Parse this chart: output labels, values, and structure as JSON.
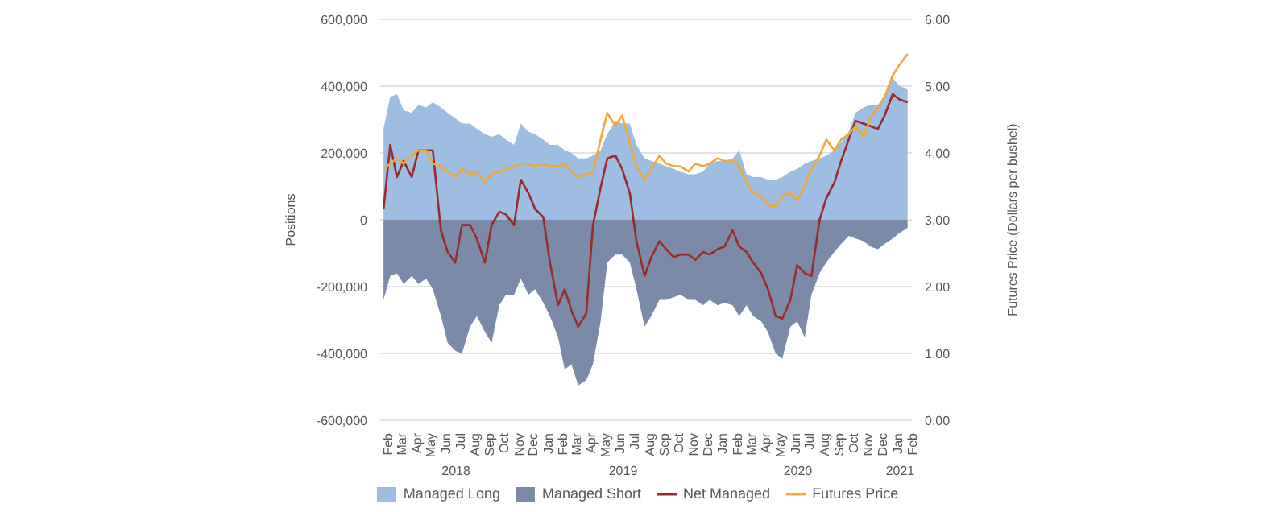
{
  "chart_data": {
    "type": "area",
    "xlabel": null,
    "ylabel": "Positions",
    "y2label": "Futures Price (Dollars per bushel)",
    "x": [
      "2018-02-01",
      "2018-02-15",
      "2018-03-01",
      "2018-03-15",
      "2018-04-01",
      "2018-04-15",
      "2018-05-01",
      "2018-05-15",
      "2018-06-01",
      "2018-06-15",
      "2018-07-01",
      "2018-07-15",
      "2018-08-01",
      "2018-08-15",
      "2018-09-01",
      "2018-09-15",
      "2018-10-01",
      "2018-10-15",
      "2018-11-01",
      "2018-11-15",
      "2018-12-01",
      "2018-12-15",
      "2019-01-01",
      "2019-01-15",
      "2019-02-01",
      "2019-02-15",
      "2019-03-01",
      "2019-03-15",
      "2019-04-01",
      "2019-04-15",
      "2019-05-01",
      "2019-05-15",
      "2019-06-01",
      "2019-06-15",
      "2019-07-01",
      "2019-07-15",
      "2019-08-01",
      "2019-08-15",
      "2019-09-01",
      "2019-09-15",
      "2019-10-01",
      "2019-10-15",
      "2019-11-01",
      "2019-11-15",
      "2019-12-01",
      "2019-12-15",
      "2020-01-01",
      "2020-01-15",
      "2020-02-01",
      "2020-02-15",
      "2020-03-01",
      "2020-03-15",
      "2020-04-01",
      "2020-04-15",
      "2020-05-01",
      "2020-05-15",
      "2020-06-01",
      "2020-06-15",
      "2020-07-01",
      "2020-07-15",
      "2020-08-01",
      "2020-08-15",
      "2020-09-01",
      "2020-09-15",
      "2020-10-01",
      "2020-10-15",
      "2020-11-01",
      "2020-11-15",
      "2020-12-01",
      "2020-12-15",
      "2021-01-01",
      "2021-01-15",
      "2021-02-01"
    ],
    "series": [
      {
        "name": "Managed Long",
        "color": "#9dbde3",
        "values": [
          272000,
          368000,
          376000,
          328000,
          320000,
          344000,
          336000,
          352000,
          336000,
          320000,
          304000,
          288000,
          288000,
          272000,
          256000,
          248000,
          256000,
          240000,
          224000,
          288000,
          264000,
          256000,
          240000,
          224000,
          224000,
          208000,
          200000,
          184000,
          184000,
          192000,
          208000,
          256000,
          296000,
          288000,
          288000,
          224000,
          184000,
          176000,
          168000,
          160000,
          152000,
          144000,
          136000,
          136000,
          144000,
          168000,
          176000,
          176000,
          184000,
          208000,
          136000,
          128000,
          128000,
          120000,
          120000,
          128000,
          144000,
          152000,
          168000,
          176000,
          184000,
          192000,
          208000,
          232000,
          264000,
          320000,
          336000,
          344000,
          344000,
          368000,
          424000,
          400000,
          392000
        ]
      },
      {
        "name": "Managed Short",
        "color": "#7a8aa8",
        "values": [
          -240000,
          -168000,
          -160000,
          -192000,
          -168000,
          -192000,
          -176000,
          -208000,
          -288000,
          -368000,
          -392000,
          -400000,
          -320000,
          -288000,
          -336000,
          -368000,
          -256000,
          -224000,
          -224000,
          -176000,
          -224000,
          -208000,
          -248000,
          -288000,
          -352000,
          -448000,
          -432000,
          -496000,
          -480000,
          -432000,
          -304000,
          -128000,
          -104000,
          -104000,
          -128000,
          -208000,
          -320000,
          -288000,
          -240000,
          -240000,
          -232000,
          -224000,
          -240000,
          -240000,
          -256000,
          -240000,
          -256000,
          -248000,
          -256000,
          -288000,
          -256000,
          -288000,
          -304000,
          -336000,
          -400000,
          -416000,
          -320000,
          -304000,
          -352000,
          -224000,
          -160000,
          -128000,
          -96000,
          -72000,
          -48000,
          -56000,
          -64000,
          -80000,
          -88000,
          -72000,
          -56000,
          -40000,
          -24000
        ]
      },
      {
        "name": "Net Managed",
        "type": "line",
        "color": "#9b2a2a",
        "values": [
          32000,
          224000,
          128000,
          176000,
          128000,
          208000,
          208000,
          208000,
          -32000,
          -96000,
          -128000,
          -16000,
          -16000,
          -56000,
          -128000,
          -16000,
          24000,
          16000,
          -16000,
          120000,
          80000,
          32000,
          8000,
          -128000,
          -256000,
          -208000,
          -272000,
          -320000,
          -280000,
          -16000,
          96000,
          184000,
          192000,
          152000,
          80000,
          -64000,
          -168000,
          -112000,
          -64000,
          -88000,
          -112000,
          -104000,
          -104000,
          -120000,
          -96000,
          -104000,
          -88000,
          -80000,
          -32000,
          -80000,
          -96000,
          -128000,
          -160000,
          -208000,
          -288000,
          -296000,
          -240000,
          -136000,
          -160000,
          -168000,
          0,
          64000,
          112000,
          176000,
          240000,
          296000,
          288000,
          280000,
          272000,
          312000,
          376000,
          360000,
          352000
        ]
      },
      {
        "name": "Futures Price",
        "type": "line",
        "axis": "y2",
        "color": "#f0a838",
        "values": [
          3.76,
          3.84,
          3.92,
          3.84,
          3.96,
          4.04,
          4.04,
          3.84,
          3.8,
          3.72,
          3.64,
          3.76,
          3.68,
          3.72,
          3.56,
          3.68,
          3.72,
          3.76,
          3.8,
          3.84,
          3.84,
          3.8,
          3.84,
          3.8,
          3.8,
          3.84,
          3.72,
          3.64,
          3.68,
          3.72,
          4.2,
          4.6,
          4.4,
          4.56,
          4.16,
          3.8,
          3.6,
          3.76,
          3.96,
          3.84,
          3.8,
          3.8,
          3.72,
          3.84,
          3.8,
          3.84,
          3.92,
          3.88,
          3.88,
          3.8,
          3.56,
          3.4,
          3.36,
          3.22,
          3.2,
          3.36,
          3.4,
          3.28,
          3.52,
          3.76,
          3.96,
          4.2,
          4.04,
          4.2,
          4.28,
          4.4,
          4.24,
          4.52,
          4.68,
          4.84,
          5.16,
          5.32,
          5.48
        ]
      }
    ],
    "xlim": [
      "2018-01-25",
      "2021-02-10"
    ],
    "xticks": [
      {
        "value": "2018-02-01",
        "label": "Feb"
      },
      {
        "value": "2018-03-01",
        "label": "Mar"
      },
      {
        "value": "2018-04-01",
        "label": "Apr"
      },
      {
        "value": "2018-05-01",
        "label": "May"
      },
      {
        "value": "2018-06-01",
        "label": "Jun"
      },
      {
        "value": "2018-07-01",
        "label": "Jul"
      },
      {
        "value": "2018-08-01",
        "label": "Aug"
      },
      {
        "value": "2018-09-01",
        "label": "Sep"
      },
      {
        "value": "2018-10-01",
        "label": "Oct"
      },
      {
        "value": "2018-11-01",
        "label": "Nov"
      },
      {
        "value": "2018-12-01",
        "label": "Dec"
      },
      {
        "value": "2019-01-01",
        "label": "Jan"
      },
      {
        "value": "2019-02-01",
        "label": "Feb"
      },
      {
        "value": "2019-03-01",
        "label": "Mar"
      },
      {
        "value": "2019-04-01",
        "label": "Apr"
      },
      {
        "value": "2019-05-01",
        "label": "May"
      },
      {
        "value": "2019-06-01",
        "label": "Jun"
      },
      {
        "value": "2019-07-01",
        "label": "Jul"
      },
      {
        "value": "2019-08-01",
        "label": "Aug"
      },
      {
        "value": "2019-09-01",
        "label": "Sep"
      },
      {
        "value": "2019-10-01",
        "label": "Oct"
      },
      {
        "value": "2019-11-01",
        "label": "Nov"
      },
      {
        "value": "2019-12-01",
        "label": "Dec"
      },
      {
        "value": "2020-01-01",
        "label": "Jan"
      },
      {
        "value": "2020-02-01",
        "label": "Feb"
      },
      {
        "value": "2020-03-01",
        "label": "Mar"
      },
      {
        "value": "2020-04-01",
        "label": "Apr"
      },
      {
        "value": "2020-05-01",
        "label": "May"
      },
      {
        "value": "2020-06-01",
        "label": "Jun"
      },
      {
        "value": "2020-07-01",
        "label": "Jul"
      },
      {
        "value": "2020-08-01",
        "label": "Aug"
      },
      {
        "value": "2020-09-01",
        "label": "Sep"
      },
      {
        "value": "2020-10-01",
        "label": "Oct"
      },
      {
        "value": "2020-11-01",
        "label": "Nov"
      },
      {
        "value": "2020-12-01",
        "label": "Dec"
      },
      {
        "value": "2021-01-01",
        "label": "Jan"
      },
      {
        "value": "2021-02-01",
        "label": "Feb"
      }
    ],
    "ylim": [
      -600000,
      600000
    ],
    "yticks": [
      {
        "value": -600000,
        "label": "-600,000"
      },
      {
        "value": -400000,
        "label": "-400,000"
      },
      {
        "value": -200000,
        "label": "-200,000"
      },
      {
        "value": 0,
        "label": "0"
      },
      {
        "value": 200000,
        "label": "200,000"
      },
      {
        "value": 400000,
        "label": "400,000"
      },
      {
        "value": 600000,
        "label": "600,000"
      }
    ],
    "y2lim": [
      0,
      6
    ],
    "y2ticks": [
      {
        "value": 0,
        "label": "0.00"
      },
      {
        "value": 1,
        "label": "1.00"
      },
      {
        "value": 2,
        "label": "2.00"
      },
      {
        "value": 3,
        "label": "3.00"
      },
      {
        "value": 4,
        "label": "4.00"
      },
      {
        "value": 5,
        "label": "5.00"
      },
      {
        "value": 6,
        "label": "6.00"
      }
    ],
    "annotations": [
      "2018",
      "2019",
      "2020",
      "2021"
    ],
    "grid": "y",
    "legend": "bottom",
    "marker": "none",
    "line_style": "solid"
  }
}
